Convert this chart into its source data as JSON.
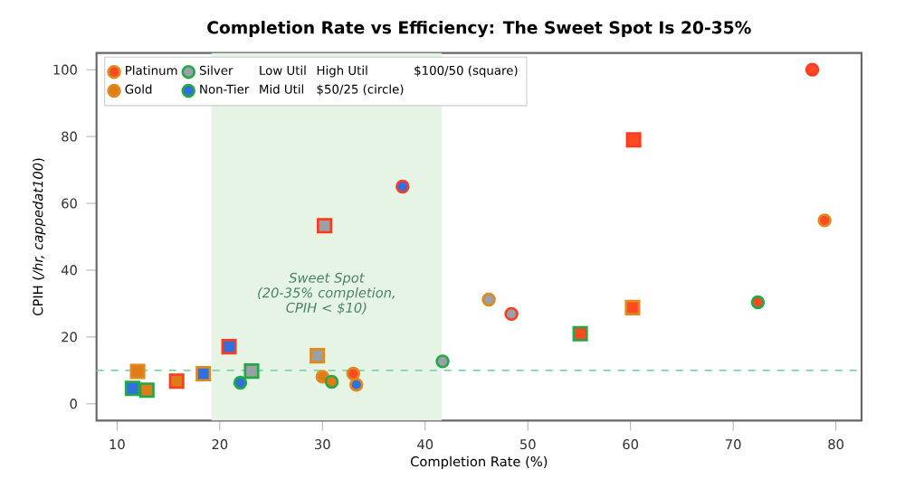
{
  "chart_data": {
    "type": "scatter",
    "title": "Completion Rate vs Efficiency: The Sweet Spot Is 20-35%",
    "xlabel": "Completion Rate (%)",
    "ylabel": "CPIH (*/hr, cappedat100*)",
    "xlim": [
      8,
      82.5
    ],
    "ylim": [
      -5,
      105
    ],
    "xticks": [
      10,
      20,
      30,
      40,
      50,
      60,
      70,
      80
    ],
    "yticks": [
      0,
      20,
      40,
      60,
      80,
      100
    ],
    "legend": "top left",
    "series": [
      {
        "name": "Platinum",
        "color": "#fe4a22",
        "marker": "circle",
        "x": [
          33.0,
          72.4,
          78.9,
          77.7
        ],
        "values": [
          9.0,
          30.4,
          54.9,
          100
        ],
        "colors": [
          "#e08a1e",
          "#22a845",
          "#e08a1e",
          "#ff3b1f"
        ]
      },
      {
        "name": "Gold",
        "color": "#e07b1a",
        "marker": "circle",
        "x": [
          30.0,
          30.9
        ],
        "values": [
          8.1,
          6.6
        ],
        "colors": [
          "#e08a1e",
          "#22a845"
        ]
      },
      {
        "name": "Silver",
        "color": "#9aa0a6",
        "marker": "circle",
        "x": [
          41.7,
          46.2,
          48.4
        ],
        "values": [
          12.7,
          31.2,
          26.9
        ],
        "colors": [
          "#22a845",
          "#e08a1e",
          "#ff3b1f"
        ]
      },
      {
        "name": "Non-Tier",
        "color": "#2f6fe0",
        "marker": "circle",
        "x": [
          22.0,
          33.3,
          37.8
        ],
        "values": [
          6.3,
          5.7,
          65.0
        ],
        "colors": [
          "#22a845",
          "#e08a1e",
          "#ff3b1f"
        ]
      },
      {
        "color": "#fe4a22",
        "marker": "square",
        "x": [
          55.1,
          60.2,
          60.3
        ],
        "values": [
          21.0,
          28.8,
          79.0
        ],
        "colors": [
          "#22a845",
          "#e08a1e",
          "#ff3b1f"
        ]
      },
      {
        "color": "#e07b1a",
        "marker": "square",
        "x": [
          12.0,
          12.9,
          15.8
        ],
        "values": [
          9.7,
          4.1,
          6.8
        ],
        "colors": [
          "#e08a1e",
          "#22a845",
          "#ff3b1f"
        ]
      },
      {
        "color": "#9aa0a6",
        "marker": "square",
        "x": [
          23.1,
          29.5,
          30.2
        ],
        "values": [
          9.8,
          14.4,
          53.3
        ],
        "colors": [
          "#22a845",
          "#e08a1e",
          "#ff3b1f"
        ]
      },
      {
        "color": "#2f6fe0",
        "marker": "square",
        "x": [
          11.5,
          18.4,
          20.9
        ],
        "values": [
          4.6,
          9.0,
          17.1
        ],
        "colors": [
          "#22a845",
          "#e08a1e",
          "#ff3b1f"
        ]
      }
    ],
    "ref_lines": [
      {
        "axis": "y",
        "value": 10,
        "color": "#7fd6a0",
        "line_style": "dashed"
      }
    ],
    "bands": [
      {
        "axis": "x",
        "from": 19.2,
        "to": 41.6,
        "color": "#e6f4e6"
      }
    ],
    "annotations": [
      "Sweet Spot\n(20-35% completion,\nCPIH < $10)",
      "Low Util",
      "Mid Util",
      "High Util",
      "$50/25 (circle)",
      "$100/50 (square)"
    ]
  }
}
